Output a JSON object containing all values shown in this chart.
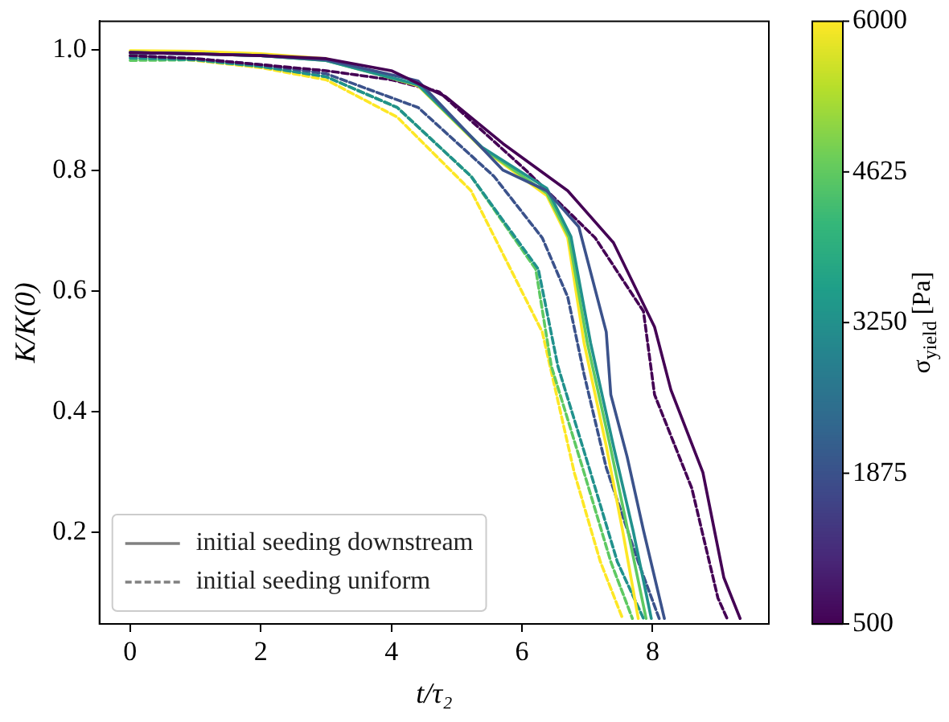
{
  "chart_data": {
    "type": "line",
    "xlabel": "t/τ₂",
    "ylabel": "K/K(0)",
    "clabel": "σ$_{yield}$ [Pa]",
    "xlim": [
      -0.47,
      9.78
    ],
    "ylim": [
      0.048,
      1.047
    ],
    "xticks": [
      0,
      2,
      4,
      6,
      8
    ],
    "yticks": [
      0.2,
      0.4,
      0.6,
      0.8,
      {
        "value": 1,
        "label": "1.0"
      }
    ],
    "clim": [
      500,
      6000
    ],
    "cticks": [
      500,
      1875,
      3250,
      4625,
      6000
    ],
    "grid": false,
    "legend": "bottom left",
    "marker": "none",
    "series": [
      {
        "color": "#440154",
        "line_style": "solid",
        "x": [
          0,
          1,
          2,
          3,
          4,
          4.83,
          5.71,
          6.7,
          7.4,
          8.03,
          8.28,
          8.77,
          9.09,
          9.34
        ],
        "values": [
          0.995,
          0.993,
          0.99,
          0.985,
          0.965,
          0.922,
          0.844,
          0.766,
          0.68,
          0.54,
          0.436,
          0.299,
          0.125,
          0.057
        ]
      },
      {
        "color": "#440154",
        "line_style": "dashed",
        "x": [
          0,
          1,
          2,
          3,
          4,
          4.73,
          6.06,
          7.12,
          7.86,
          8.03,
          8.6,
          9.0,
          9.14
        ],
        "values": [
          0.99,
          0.985,
          0.975,
          0.965,
          0.95,
          0.93,
          0.8,
          0.688,
          0.566,
          0.428,
          0.273,
          0.091,
          0.057
        ]
      },
      {
        "color": "#3b528b",
        "line_style": "solid",
        "x": [
          0,
          1,
          2,
          3,
          4.41,
          5.71,
          6.38,
          6.87,
          7.29,
          7.36,
          7.61,
          7.86,
          8.18
        ],
        "values": [
          0.995,
          0.993,
          0.99,
          0.983,
          0.948,
          0.8,
          0.766,
          0.706,
          0.532,
          0.428,
          0.325,
          0.203,
          0.057
        ]
      },
      {
        "color": "#3b528b",
        "line_style": "dashed",
        "x": [
          0,
          1,
          2,
          3,
          4.41,
          5.57,
          6.31,
          6.7,
          6.95,
          7.29,
          7.78,
          8.1
        ],
        "values": [
          0.99,
          0.985,
          0.975,
          0.96,
          0.904,
          0.79,
          0.688,
          0.59,
          0.462,
          0.307,
          0.151,
          0.057
        ]
      },
      {
        "color": "#21918c",
        "line_style": "solid",
        "x": [
          0,
          1,
          2,
          3,
          4.41,
          5.39,
          6.38,
          6.75,
          7.05,
          7.4,
          7.7,
          7.98
        ],
        "values": [
          0.995,
          0.993,
          0.99,
          0.982,
          0.942,
          0.838,
          0.77,
          0.69,
          0.514,
          0.343,
          0.203,
          0.057
        ]
      },
      {
        "color": "#21918c",
        "line_style": "dashed",
        "x": [
          0,
          1,
          2,
          3,
          4.09,
          5.22,
          6.25,
          6.55,
          7.05,
          7.46,
          7.86
        ],
        "values": [
          0.986,
          0.983,
          0.972,
          0.955,
          0.904,
          0.79,
          0.636,
          0.475,
          0.299,
          0.151,
          0.057
        ]
      },
      {
        "color": "#5ec962",
        "line_style": "solid",
        "x": [
          0,
          1,
          2,
          3,
          4.41,
          5.39,
          6.38,
          6.72,
          7.0,
          7.35,
          7.62,
          7.9
        ],
        "values": [
          0.995,
          0.993,
          0.99,
          0.982,
          0.941,
          0.837,
          0.762,
          0.689,
          0.514,
          0.343,
          0.203,
          0.057
        ]
      },
      {
        "color": "#5ec962",
        "line_style": "dashed",
        "x": [
          0,
          1,
          2,
          3,
          4.09,
          5.22,
          6.21,
          6.45,
          6.95,
          7.36,
          7.69
        ],
        "values": [
          0.982,
          0.983,
          0.972,
          0.955,
          0.904,
          0.79,
          0.636,
          0.475,
          0.299,
          0.151,
          0.057
        ]
      },
      {
        "color": "#fde725",
        "line_style": "solid",
        "x": [
          0,
          1,
          2,
          3,
          4.41,
          5.39,
          6.38,
          6.7,
          6.95,
          7.29,
          7.54,
          7.78
        ],
        "values": [
          0.998,
          0.997,
          0.993,
          0.985,
          0.94,
          0.836,
          0.758,
          0.688,
          0.514,
          0.343,
          0.203,
          0.057
        ]
      },
      {
        "color": "#fde725",
        "line_style": "dashed",
        "x": [
          0,
          1,
          2,
          3,
          4.09,
          5.22,
          6.31,
          6.8,
          7.2,
          7.54
        ],
        "values": [
          0.99,
          0.982,
          0.97,
          0.95,
          0.888,
          0.766,
          0.532,
          0.299,
          0.151,
          0.057
        ]
      },
      {
        "name": "initial seeding downstream",
        "color": "#808080",
        "line_style": "solid"
      },
      {
        "name": "initial seeding uniform",
        "color": "#808080",
        "line_style": "dashed"
      }
    ]
  }
}
